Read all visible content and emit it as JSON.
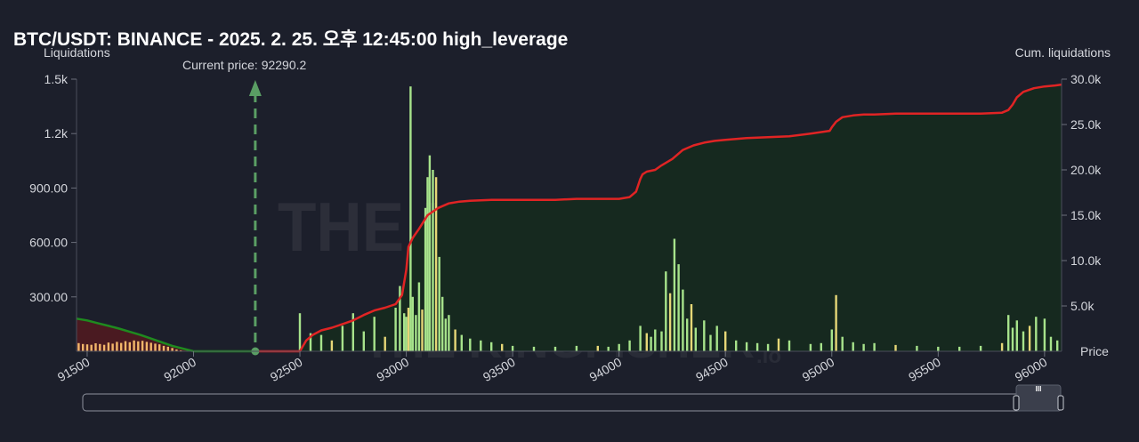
{
  "title": "BTC/USDT: BINANCE - 2025. 2. 25. 오후 12:45:00 high_leverage",
  "watermark": {
    "brand": "THE KINGFISHER",
    "suffix": ".io"
  },
  "colors": {
    "background": "#1c1f2b",
    "cumulative_line": "#e02424",
    "short_side_line": "#1f8a1f",
    "current_price_marker": "#5a9e64",
    "short_bars": "#f3b66a",
    "long_bars": "#a7e38b",
    "long_bars_alt": "#e6d777",
    "area_fill": "#16291f"
  },
  "chart_data": {
    "type": "bar",
    "title": "BTC/USDT: BINANCE - 2025. 2. 25. 오후 12:45:00 high_leverage",
    "xlabel": "Price",
    "ylabel": "Liquidations",
    "y2label": "Cum. liquidations",
    "xlim": [
      91450,
      96080
    ],
    "ylim": [
      0,
      1500
    ],
    "y2lim": [
      0,
      30000
    ],
    "x_ticks": [
      91500,
      92000,
      92500,
      93000,
      93500,
      94000,
      94500,
      95000,
      95500,
      96000
    ],
    "x_tick_labels": [
      "91500",
      "92000",
      "92500",
      "93000",
      "93500",
      "94000",
      "94500",
      "95000",
      "95500",
      "96000"
    ],
    "y_ticks": [
      300,
      600,
      900,
      1200,
      1500
    ],
    "y_tick_labels": [
      "300.00",
      "600.00",
      "900.00",
      "1.2k",
      "1.5k"
    ],
    "y2_ticks": [
      5000,
      10000,
      15000,
      20000,
      25000,
      30000
    ],
    "y2_tick_labels": [
      "5.0k",
      "10.0k",
      "15.0k",
      "20.0k",
      "25.0k",
      "30.0k"
    ],
    "grid": false,
    "current_price": {
      "label": "Current price: 92290.2",
      "value": 92290.2
    },
    "series": [
      {
        "kind": "cumulative_short",
        "x": [
          91450,
          91500,
          91550,
          91600,
          91650,
          91700,
          91750,
          91800,
          91850,
          91900,
          92000,
          92290
        ],
        "values": [
          3600,
          3400,
          3100,
          2800,
          2500,
          2150,
          1800,
          1400,
          1000,
          600,
          0,
          0
        ]
      },
      {
        "kind": "cumulative_long",
        "x": [
          92290,
          92500,
          92530,
          92560,
          92600,
          92650,
          92700,
          92750,
          92800,
          92850,
          92900,
          92950,
          92980,
          93000,
          93010,
          93030,
          93060,
          93100,
          93150,
          93200,
          93250,
          93300,
          93400,
          93500,
          93600,
          93700,
          93800,
          93900,
          94000,
          94050,
          94080,
          94100,
          94110,
          94130,
          94170,
          94200,
          94250,
          94300,
          94350,
          94400,
          94450,
          94500,
          94600,
          94700,
          94800,
          94900,
          94990,
          95000,
          95020,
          95050,
          95100,
          95150,
          95200,
          95300,
          95400,
          95500,
          95600,
          95700,
          95800,
          95830,
          95850,
          95870,
          95900,
          95950,
          96000,
          96050,
          96080
        ],
        "values": [
          0,
          0,
          1200,
          1800,
          2300,
          2600,
          3000,
          3400,
          4000,
          4500,
          4800,
          5200,
          6200,
          9000,
          11500,
          12500,
          13500,
          15000,
          15800,
          16300,
          16500,
          16600,
          16700,
          16700,
          16700,
          16700,
          16800,
          16800,
          16800,
          17000,
          17600,
          19000,
          19500,
          19800,
          20000,
          20500,
          21200,
          22200,
          22700,
          23000,
          23200,
          23300,
          23500,
          23600,
          23700,
          24000,
          24300,
          24700,
          25300,
          25800,
          26000,
          26100,
          26100,
          26200,
          26200,
          26200,
          26200,
          26200,
          26300,
          26600,
          27200,
          28000,
          28600,
          29000,
          29200,
          29300,
          29400
        ]
      },
      {
        "kind": "short_bars",
        "x": [
          91460,
          91480,
          91500,
          91520,
          91540,
          91560,
          91580,
          91600,
          91620,
          91640,
          91660,
          91680,
          91700,
          91720,
          91740,
          91760,
          91780,
          91800,
          91820,
          91840,
          91860,
          91880,
          91900,
          91920,
          91940
        ],
        "values": [
          45,
          40,
          38,
          36,
          44,
          40,
          36,
          48,
          42,
          52,
          46,
          56,
          50,
          60,
          55,
          58,
          52,
          47,
          42,
          38,
          30,
          25,
          18,
          10,
          5
        ]
      },
      {
        "kind": "long_bars",
        "x": [
          92500,
          92550,
          92600,
          92650,
          92700,
          92750,
          92800,
          92850,
          92900,
          92950,
          92970,
          92990,
          93000,
          93010,
          93020,
          93030,
          93045,
          93060,
          93075,
          93090,
          93100,
          93110,
          93125,
          93140,
          93155,
          93170,
          93185,
          93200,
          93230,
          93260,
          93300,
          93350,
          93400,
          93450,
          93500,
          93600,
          93700,
          93800,
          93900,
          93950,
          94000,
          94050,
          94100,
          94130,
          94150,
          94170,
          94200,
          94220,
          94240,
          94260,
          94280,
          94300,
          94320,
          94340,
          94360,
          94400,
          94430,
          94460,
          94500,
          94550,
          94600,
          94650,
          94700,
          94750,
          94800,
          94900,
          94950,
          95000,
          95020,
          95050,
          95100,
          95150,
          95200,
          95300,
          95400,
          95500,
          95600,
          95700,
          95800,
          95830,
          95850,
          95870,
          95900,
          95930,
          95960,
          96000,
          96030,
          96060
        ],
        "values": [
          210,
          100,
          90,
          60,
          140,
          210,
          110,
          190,
          80,
          240,
          360,
          210,
          190,
          240,
          1460,
          300,
          200,
          380,
          230,
          790,
          960,
          1080,
          1000,
          960,
          520,
          300,
          180,
          200,
          120,
          90,
          70,
          60,
          50,
          40,
          30,
          25,
          25,
          30,
          30,
          25,
          40,
          60,
          140,
          100,
          80,
          120,
          110,
          440,
          320,
          620,
          480,
          340,
          180,
          260,
          130,
          170,
          90,
          140,
          110,
          60,
          50,
          45,
          40,
          70,
          60,
          40,
          45,
          120,
          310,
          80,
          50,
          40,
          45,
          35,
          30,
          25,
          25,
          30,
          45,
          200,
          130,
          170,
          110,
          140,
          190,
          180,
          80,
          60
        ]
      }
    ]
  },
  "scrollbar": {
    "handle_glyph": "III"
  }
}
